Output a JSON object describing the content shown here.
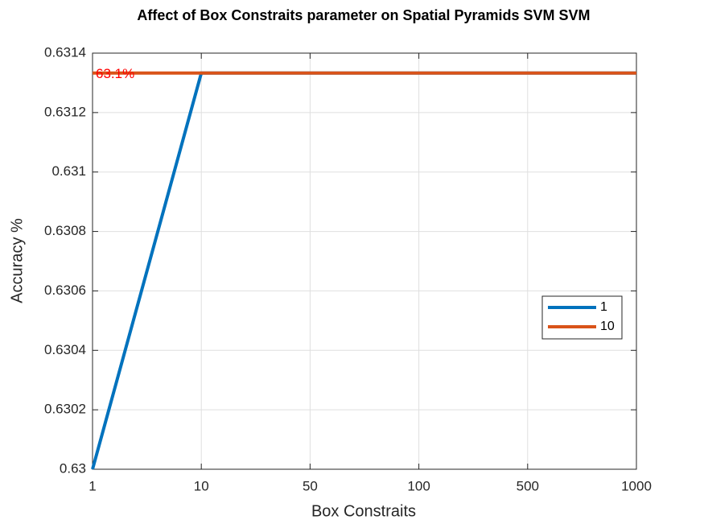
{
  "chart_data": {
    "type": "line",
    "title": "Affect of Box Constraits parameter on Spatial Pyramids SVM SVM",
    "xlabel": "Box Constraits",
    "ylabel": "Accuracy %",
    "categories": [
      "1",
      "10",
      "50",
      "100",
      "500",
      "1000"
    ],
    "series": [
      {
        "name": "1",
        "color": "#0072bd",
        "values": [
          0.63,
          0.631333,
          0.631333,
          0.631333,
          0.631333,
          0.631333
        ]
      },
      {
        "name": "10",
        "color": "#d95319",
        "values": [
          0.631333,
          0.631333,
          0.631333,
          0.631333,
          0.631333,
          0.631333
        ]
      }
    ],
    "annotations": [
      {
        "text": "63.1%",
        "color": "#ff0000"
      }
    ],
    "ylim": [
      0.63,
      0.6314
    ],
    "yticks": [
      0.63,
      0.6302,
      0.6304,
      0.6306,
      0.6308,
      0.631,
      0.6312,
      0.6314
    ],
    "grid": true,
    "legend": "east"
  }
}
